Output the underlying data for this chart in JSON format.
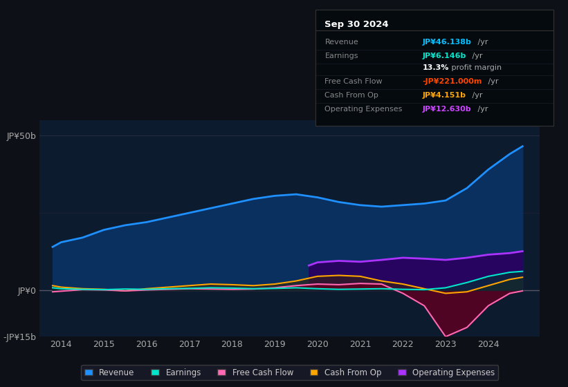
{
  "bg_color": "#0d1117",
  "plot_bg_color": "#0d1b2e",
  "ylim": [
    -15,
    55
  ],
  "yticks": [
    -15,
    0,
    50
  ],
  "ytick_labels": [
    "-JP¥15b",
    "JP¥0",
    "JP¥50b"
  ],
  "xticks": [
    2014,
    2015,
    2016,
    2017,
    2018,
    2019,
    2020,
    2021,
    2022,
    2023,
    2024
  ],
  "xlim": [
    2013.5,
    2025.2
  ],
  "info_box": {
    "title": "Sep 30 2024",
    "rows": [
      {
        "label": "Revenue",
        "value": "JP¥46.138b",
        "suffix": " /yr",
        "color": "#00bfff"
      },
      {
        "label": "Earnings",
        "value": "JP¥6.146b",
        "suffix": " /yr",
        "color": "#00e5cc"
      },
      {
        "label": "",
        "value": "13.3%",
        "suffix": " profit margin",
        "color": "#ffffff",
        "suffix_color": "#aaaaaa"
      },
      {
        "label": "Free Cash Flow",
        "value": "-JP¥221.000m",
        "suffix": " /yr",
        "color": "#ff4500"
      },
      {
        "label": "Cash From Op",
        "value": "JP¥4.151b",
        "suffix": " /yr",
        "color": "#ffa500"
      },
      {
        "label": "Operating Expenses",
        "value": "JP¥12.630b",
        "suffix": " /yr",
        "color": "#cc44ff"
      }
    ]
  },
  "series": {
    "revenue": {
      "color": "#1e90ff",
      "fill_color": "#0a3060",
      "x": [
        2013.8,
        2014.0,
        2014.5,
        2015.0,
        2015.5,
        2016.0,
        2016.5,
        2017.0,
        2017.5,
        2018.0,
        2018.5,
        2019.0,
        2019.5,
        2020.0,
        2020.5,
        2021.0,
        2021.5,
        2022.0,
        2022.5,
        2023.0,
        2023.5,
        2024.0,
        2024.5,
        2024.8
      ],
      "y": [
        14.0,
        15.5,
        17.0,
        19.5,
        21.0,
        22.0,
        23.5,
        25.0,
        26.5,
        28.0,
        29.5,
        30.5,
        31.0,
        30.0,
        28.5,
        27.5,
        27.0,
        27.5,
        28.0,
        29.0,
        33.0,
        39.0,
        44.0,
        46.5
      ]
    },
    "earnings": {
      "color": "#00e5cc",
      "fill_color": "#003333",
      "x": [
        2013.8,
        2014.0,
        2014.5,
        2015.0,
        2015.5,
        2016.0,
        2016.5,
        2017.0,
        2017.5,
        2018.0,
        2018.5,
        2019.0,
        2019.5,
        2020.0,
        2020.5,
        2021.0,
        2021.5,
        2022.0,
        2022.5,
        2023.0,
        2023.5,
        2024.0,
        2024.5,
        2024.8
      ],
      "y": [
        0.8,
        0.5,
        0.3,
        0.2,
        0.4,
        0.3,
        0.5,
        0.6,
        0.8,
        0.7,
        0.5,
        0.6,
        0.8,
        0.5,
        0.3,
        0.4,
        0.5,
        0.3,
        0.2,
        0.8,
        2.5,
        4.5,
        5.8,
        6.1
      ]
    },
    "free_cash_flow": {
      "color": "#ff69b4",
      "fill_color": "#5a0020",
      "x": [
        2013.8,
        2014.0,
        2014.5,
        2015.0,
        2015.5,
        2016.0,
        2016.5,
        2017.0,
        2017.5,
        2018.0,
        2018.5,
        2019.0,
        2019.5,
        2020.0,
        2020.5,
        2021.0,
        2021.5,
        2022.0,
        2022.5,
        2023.0,
        2023.5,
        2024.0,
        2024.5,
        2024.8
      ],
      "y": [
        -0.5,
        -0.3,
        0.2,
        0.1,
        -0.2,
        0.1,
        0.3,
        0.5,
        0.4,
        0.3,
        0.4,
        0.8,
        1.5,
        2.0,
        1.8,
        2.2,
        2.0,
        -1.0,
        -5.0,
        -15.0,
        -12.0,
        -5.0,
        -1.0,
        -0.2
      ]
    },
    "cash_from_op": {
      "color": "#ffa500",
      "fill_color": "#3a2800",
      "x": [
        2013.8,
        2014.0,
        2014.5,
        2015.0,
        2015.5,
        2016.0,
        2016.5,
        2017.0,
        2017.5,
        2018.0,
        2018.5,
        2019.0,
        2019.5,
        2020.0,
        2020.5,
        2021.0,
        2021.5,
        2022.0,
        2022.5,
        2023.0,
        2023.5,
        2024.0,
        2024.5,
        2024.8
      ],
      "y": [
        1.5,
        1.0,
        0.5,
        0.3,
        -0.2,
        0.5,
        1.0,
        1.5,
        2.0,
        1.8,
        1.5,
        2.0,
        3.0,
        4.5,
        4.8,
        4.5,
        3.0,
        2.0,
        0.5,
        -1.0,
        -0.5,
        1.5,
        3.5,
        4.2
      ]
    },
    "operating_expenses": {
      "color": "#aa33ff",
      "fill_color": "#2a0060",
      "x": [
        2019.8,
        2020.0,
        2020.5,
        2021.0,
        2021.5,
        2022.0,
        2022.5,
        2023.0,
        2023.5,
        2024.0,
        2024.5,
        2024.8
      ],
      "y": [
        8.0,
        9.0,
        9.5,
        9.2,
        9.8,
        10.5,
        10.2,
        9.8,
        10.5,
        11.5,
        12.0,
        12.6
      ]
    }
  },
  "legend": [
    {
      "label": "Revenue",
      "color": "#1e90ff"
    },
    {
      "label": "Earnings",
      "color": "#00e5cc"
    },
    {
      "label": "Free Cash Flow",
      "color": "#ff69b4"
    },
    {
      "label": "Cash From Op",
      "color": "#ffa500"
    },
    {
      "label": "Operating Expenses",
      "color": "#aa33ff"
    }
  ]
}
